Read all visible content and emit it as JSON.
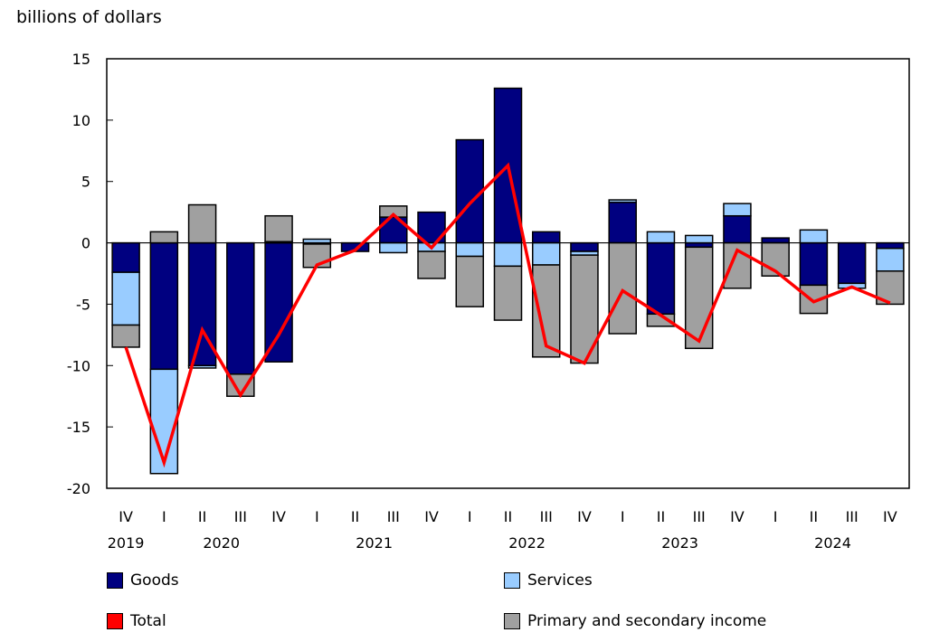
{
  "chart_data": {
    "type": "bar",
    "stacked": true,
    "title": "",
    "ylabel": "billions of dollars",
    "ylim": [
      -20,
      15
    ],
    "yticks": [
      15,
      10,
      5,
      0,
      -5,
      -10,
      -15,
      -20
    ],
    "grid": false,
    "legend_placement": "bottom",
    "categories": [
      "IV",
      "I",
      "II",
      "III",
      "IV",
      "I",
      "II",
      "III",
      "IV",
      "I",
      "II",
      "III",
      "IV",
      "I",
      "II",
      "III",
      "IV",
      "I",
      "II",
      "III",
      "IV"
    ],
    "years": [
      "2019",
      "2020",
      "2020",
      "2020",
      "2020",
      "2021",
      "2021",
      "2021",
      "2021",
      "2022",
      "2022",
      "2022",
      "2022",
      "2023",
      "2023",
      "2023",
      "2023",
      "2024",
      "2024",
      "2024",
      "2024"
    ],
    "series": [
      {
        "name": "Goods",
        "kind": "bar",
        "color": "#000080",
        "values": [
          -2.4,
          -10.3,
          -10.0,
          -10.7,
          -9.7,
          -0.1,
          -0.7,
          2.1,
          2.5,
          8.4,
          12.6,
          0.9,
          -0.7,
          3.3,
          -5.8,
          -0.35,
          2.2,
          0.4,
          -3.45,
          -3.3,
          -0.45
        ]
      },
      {
        "name": "Services",
        "kind": "bar",
        "color": "#99CCFF",
        "values": [
          -4.3,
          -8.5,
          -0.2,
          0.0,
          0.1,
          0.3,
          0.0,
          -0.8,
          -0.7,
          -1.1,
          -1.9,
          -1.8,
          -0.3,
          0.2,
          0.9,
          0.6,
          1.0,
          0.0,
          1.05,
          -0.4,
          -1.85
        ]
      },
      {
        "name": "Primary and secondary income",
        "kind": "bar",
        "color": "#A0A0A0",
        "values": [
          -1.8,
          0.9,
          3.1,
          -1.8,
          2.1,
          -1.9,
          0.0,
          0.9,
          -2.2,
          -4.1,
          -4.4,
          -7.5,
          -8.8,
          -7.4,
          -1.0,
          -8.25,
          -3.7,
          -2.7,
          -2.3,
          0.0,
          -2.7
        ]
      },
      {
        "name": "Total",
        "kind": "line",
        "color": "#FF0000",
        "values": [
          -8.5,
          -17.9,
          -7.1,
          -12.4,
          -7.5,
          -1.8,
          -0.6,
          2.3,
          -0.4,
          3.2,
          6.3,
          -8.4,
          -9.8,
          -3.9,
          -5.9,
          -8.0,
          -0.6,
          -2.3,
          -4.8,
          -3.6,
          -4.9
        ]
      }
    ]
  }
}
